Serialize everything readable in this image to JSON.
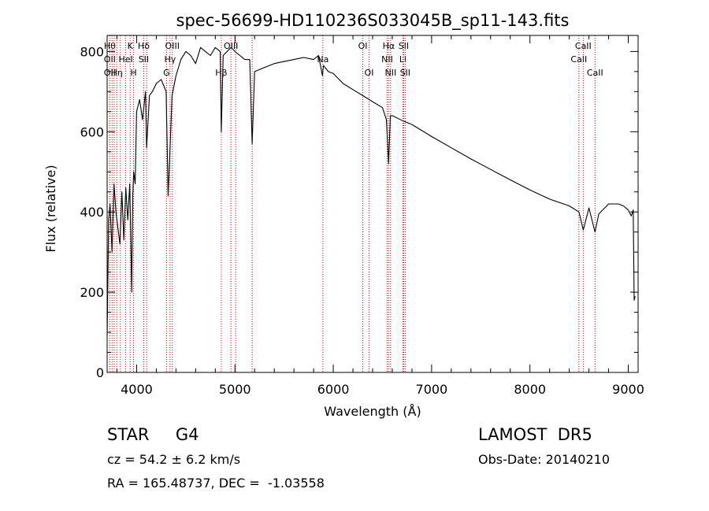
{
  "chart_data": {
    "type": "line",
    "title": "spec-56699-HD110236S033045B_sp11-143.fits",
    "xlabel": "Wavelength (Å)",
    "ylabel": "Flux (relative)",
    "xlim": [
      3700,
      9100
    ],
    "ylim": [
      0,
      840
    ],
    "xticks": [
      4000,
      5000,
      6000,
      7000,
      8000,
      9000
    ],
    "yticks": [
      0,
      200,
      400,
      600,
      800
    ],
    "grid": false,
    "series": [
      {
        "color": "#000000",
        "x": [
          3700,
          3715,
          3730,
          3750,
          3770,
          3790,
          3810,
          3830,
          3850,
          3870,
          3890,
          3910,
          3930,
          3950,
          3960,
          3970,
          3985,
          4000,
          4030,
          4060,
          4090,
          4101,
          4130,
          4160,
          4200,
          4250,
          4300,
          4320,
          4340,
          4360,
          4400,
          4450,
          4500,
          4550,
          4600,
          4650,
          4700,
          4750,
          4800,
          4850,
          4861,
          4880,
          4920,
          4960,
          5000,
          5050,
          5100,
          5150,
          5175,
          5200,
          5300,
          5400,
          5500,
          5600,
          5700,
          5800,
          5850,
          5890,
          5900,
          5950,
          6000,
          6100,
          6200,
          6300,
          6400,
          6500,
          6540,
          6563,
          6580,
          6600,
          6700,
          6800,
          7000,
          7200,
          7400,
          7600,
          7800,
          8000,
          8200,
          8400,
          8498,
          8542,
          8600,
          8662,
          8700,
          8800,
          8900,
          8950,
          9000,
          9030,
          9050,
          9060,
          9070
        ],
        "y": [
          90,
          380,
          420,
          300,
          470,
          400,
          360,
          320,
          450,
          330,
          460,
          380,
          470,
          200,
          440,
          500,
          470,
          650,
          680,
          630,
          700,
          560,
          690,
          700,
          720,
          730,
          700,
          440,
          560,
          690,
          740,
          780,
          800,
          790,
          770,
          810,
          800,
          790,
          810,
          800,
          600,
          790,
          800,
          810,
          800,
          790,
          780,
          780,
          570,
          750,
          760,
          770,
          775,
          780,
          785,
          780,
          790,
          740,
          765,
          750,
          745,
          720,
          705,
          690,
          675,
          660,
          630,
          520,
          640,
          640,
          628,
          618,
          588,
          560,
          532,
          506,
          480,
          455,
          432,
          415,
          400,
          355,
          410,
          350,
          395,
          420,
          420,
          415,
          405,
          390,
          405,
          180,
          190
        ]
      }
    ],
    "line_markers": [
      {
        "wavelength": 3727,
        "top": "Hθ",
        "mid": "OII",
        "bot": "OII"
      },
      {
        "wavelength": 3750,
        "top": "",
        "mid": "",
        "bot": ""
      },
      {
        "wavelength": 3771,
        "top": "",
        "mid": "",
        "bot": ""
      },
      {
        "wavelength": 3798,
        "top": "",
        "mid": "",
        "bot": "Hη"
      },
      {
        "wavelength": 3835,
        "top": "",
        "mid": "",
        "bot": ""
      },
      {
        "wavelength": 3889,
        "top": "",
        "mid": "HeI",
        "bot": ""
      },
      {
        "wavelength": 3934,
        "top": "K",
        "mid": "",
        "bot": ""
      },
      {
        "wavelength": 3969,
        "top": "",
        "mid": "",
        "bot": "H"
      },
      {
        "wavelength": 4072,
        "top": "Hδ",
        "mid": "SII",
        "bot": ""
      },
      {
        "wavelength": 4102,
        "top": "",
        "mid": "",
        "bot": ""
      },
      {
        "wavelength": 4304,
        "top": "",
        "mid": "",
        "bot": "G"
      },
      {
        "wavelength": 4340,
        "top": "",
        "mid": "Hγ",
        "bot": ""
      },
      {
        "wavelength": 4363,
        "top": "OIII",
        "mid": "",
        "bot": ""
      },
      {
        "wavelength": 4861,
        "top": "",
        "mid": "",
        "bot": "Hβ"
      },
      {
        "wavelength": 4959,
        "top": "OIII",
        "mid": "",
        "bot": ""
      },
      {
        "wavelength": 5007,
        "top": "",
        "mid": "",
        "bot": ""
      },
      {
        "wavelength": 5175,
        "top": "",
        "mid": "",
        "bot": ""
      },
      {
        "wavelength": 5894,
        "top": "",
        "mid": "Na",
        "bot": ""
      },
      {
        "wavelength": 6300,
        "top": "OI",
        "mid": "",
        "bot": ""
      },
      {
        "wavelength": 6364,
        "top": "",
        "mid": "",
        "bot": "OI"
      },
      {
        "wavelength": 6548,
        "top": "",
        "mid": "NII",
        "bot": ""
      },
      {
        "wavelength": 6563,
        "top": "Hα",
        "mid": "",
        "bot": ""
      },
      {
        "wavelength": 6583,
        "top": "",
        "mid": "",
        "bot": "NII"
      },
      {
        "wavelength": 6708,
        "top": "",
        "mid": "Li",
        "bot": ""
      },
      {
        "wavelength": 6716,
        "top": "SII",
        "mid": "",
        "bot": ""
      },
      {
        "wavelength": 6731,
        "top": "",
        "mid": "",
        "bot": "SII"
      },
      {
        "wavelength": 8498,
        "top": "",
        "mid": "CaII",
        "bot": ""
      },
      {
        "wavelength": 8542,
        "top": "CaII",
        "mid": "",
        "bot": ""
      },
      {
        "wavelength": 8662,
        "top": "",
        "mid": "",
        "bot": "CaII"
      }
    ]
  },
  "info": {
    "class_line": "STAR     G4",
    "survey_line": "LAMOST  DR5",
    "cz_line": "cz = 54.2 ± 6.2 km/s",
    "obsdate_line": "Obs-Date: 20140210",
    "radec_line": "RA = 165.48737, DEC =  -1.03558"
  },
  "colors": {
    "marker_line": "#cc0000",
    "spectrum": "#000000",
    "frame": "#000000"
  }
}
